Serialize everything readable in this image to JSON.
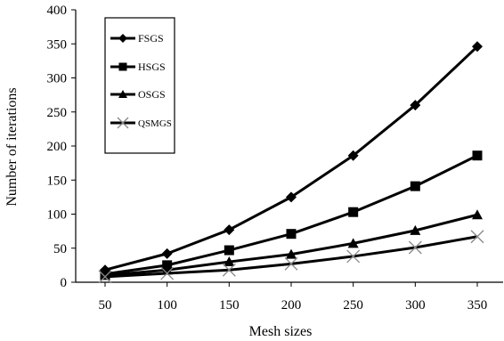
{
  "chart_data": {
    "type": "line",
    "x": [
      50,
      100,
      150,
      200,
      250,
      300,
      350
    ],
    "xlabel": "Mesh sizes",
    "ylabel": "Number of iterations",
    "ylim": [
      0,
      400
    ],
    "y_ticks": [
      "0",
      "50",
      "100",
      "150",
      "200",
      "250",
      "300",
      "350",
      "400"
    ],
    "x_ticks": [
      "50",
      "100",
      "150",
      "200",
      "250",
      "300",
      "350"
    ],
    "grid": false,
    "legend_position": "top-left",
    "series": [
      {
        "name": "FSGS",
        "marker": "diamond",
        "values": [
          18,
          42,
          77,
          125,
          186,
          260,
          346
        ]
      },
      {
        "name": "HSGS",
        "marker": "square",
        "values": [
          12,
          25,
          47,
          71,
          103,
          141,
          186
        ]
      },
      {
        "name": "OSGS",
        "marker": "triangle",
        "values": [
          10,
          18,
          30,
          41,
          57,
          76,
          99
        ]
      },
      {
        "name": "QSMGS",
        "marker": "x",
        "values": [
          8,
          13,
          18,
          27,
          38,
          51,
          67
        ]
      }
    ],
    "line_color": "#000000"
  }
}
